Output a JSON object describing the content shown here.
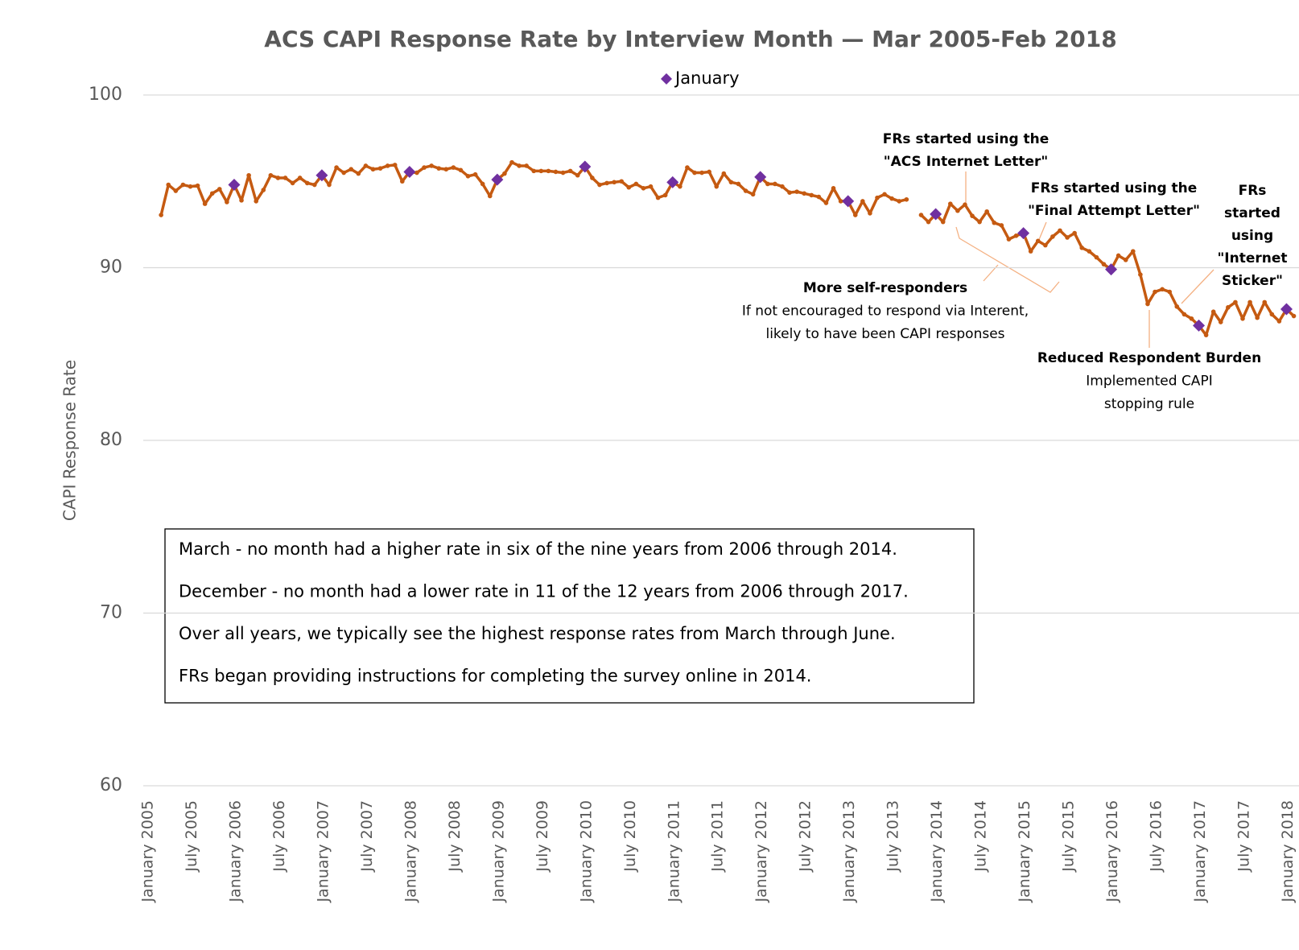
{
  "chart_data": {
    "type": "line",
    "title": "ACS CAPI Response Rate by Interview Month — Mar 2005-Feb 2018",
    "y_label": "CAPI Response Rate",
    "categories": [
      "January 2005",
      null,
      null,
      null,
      null,
      null,
      "July 2005",
      null,
      null,
      null,
      null,
      null,
      "January 2006",
      null,
      null,
      null,
      null,
      null,
      "July 2006",
      null,
      null,
      null,
      null,
      null,
      "January 2007",
      null,
      null,
      null,
      null,
      null,
      "July 2007",
      null,
      null,
      null,
      null,
      null,
      "January 2008",
      null,
      null,
      null,
      null,
      null,
      "July 2008",
      null,
      null,
      null,
      null,
      null,
      "January 2009",
      null,
      null,
      null,
      null,
      null,
      "July 2009",
      null,
      null,
      null,
      null,
      null,
      "January 2010",
      null,
      null,
      null,
      null,
      null,
      "July 2010",
      null,
      null,
      null,
      null,
      null,
      "January 2011",
      null,
      null,
      null,
      null,
      null,
      "July 2011",
      null,
      null,
      null,
      null,
      null,
      "January 2012",
      null,
      null,
      null,
      null,
      null,
      "July 2012",
      null,
      null,
      null,
      null,
      null,
      "January 2013",
      null,
      null,
      null,
      null,
      null,
      "July 2013",
      null,
      null,
      null,
      null,
      null,
      "January 2014",
      null,
      null,
      null,
      null,
      null,
      "July 2014",
      null,
      null,
      null,
      null,
      null,
      "January 2015",
      null,
      null,
      null,
      null,
      null,
      "July 2015",
      null,
      null,
      null,
      null,
      null,
      "January 2016",
      null,
      null,
      null,
      null,
      null,
      "July 2016",
      null,
      null,
      null,
      null,
      null,
      "January 2017",
      null,
      null,
      null,
      null,
      null,
      "July 2017",
      null,
      null,
      null,
      null,
      null,
      "January 2018",
      null
    ],
    "series": [
      {
        "color": "#c55a11",
        "marker": "dot",
        "values": [
          null,
          null,
          93.05,
          94.8,
          94.45,
          94.8,
          94.7,
          94.75,
          93.7,
          94.3,
          94.55,
          93.8,
          94.8,
          93.9,
          95.35,
          93.85,
          94.5,
          95.35,
          95.2,
          95.2,
          94.9,
          95.2,
          94.9,
          94.8,
          95.35,
          94.8,
          95.8,
          95.5,
          95.7,
          95.45,
          95.9,
          95.7,
          95.75,
          95.9,
          95.95,
          95.0,
          95.55,
          95.5,
          95.8,
          95.9,
          95.75,
          95.7,
          95.8,
          95.65,
          95.3,
          95.4,
          94.85,
          94.15,
          95.1,
          95.45,
          96.1,
          95.9,
          95.9,
          95.6,
          95.6,
          95.6,
          95.55,
          95.5,
          95.6,
          95.35,
          95.85,
          95.2,
          94.8,
          94.9,
          94.95,
          95.0,
          94.65,
          94.85,
          94.6,
          94.7,
          94.05,
          94.2,
          94.95,
          94.7,
          95.8,
          95.5,
          95.5,
          95.55,
          94.7,
          95.45,
          94.95,
          94.85,
          94.45,
          94.25,
          95.25,
          94.85,
          94.85,
          94.7,
          94.35,
          94.4,
          94.3,
          94.2,
          94.1,
          93.75,
          94.6,
          93.85,
          93.85,
          93.05,
          93.85,
          93.15,
          94.05,
          94.25,
          94.0,
          93.85,
          93.95,
          null,
          93.05,
          92.65,
          93.1,
          92.65,
          93.7,
          93.3,
          93.65,
          93.0,
          92.65,
          93.25,
          92.6,
          92.45,
          91.65,
          91.85,
          92.0,
          90.95,
          91.55,
          91.3,
          91.8,
          92.15,
          91.75,
          92.0,
          91.15,
          90.95,
          90.6,
          90.2,
          89.9,
          90.7,
          90.45,
          90.95,
          89.6,
          87.9,
          88.6,
          88.75,
          88.6,
          87.75,
          87.3,
          87.05,
          86.65,
          86.1,
          87.45,
          86.85,
          87.7,
          88.0,
          87.05,
          88.0,
          87.1,
          88.0,
          87.3,
          86.9,
          87.6,
          87.2
        ]
      },
      {
        "name": "January",
        "color": "#7030a0",
        "marker": "diamond",
        "values": [
          null,
          null,
          null,
          null,
          null,
          null,
          null,
          null,
          null,
          null,
          null,
          null,
          94.8,
          null,
          null,
          null,
          null,
          null,
          null,
          null,
          null,
          null,
          null,
          null,
          95.35,
          null,
          null,
          null,
          null,
          null,
          null,
          null,
          null,
          null,
          null,
          null,
          95.55,
          null,
          null,
          null,
          null,
          null,
          null,
          null,
          null,
          null,
          null,
          null,
          95.1,
          null,
          null,
          null,
          null,
          null,
          null,
          null,
          null,
          null,
          null,
          null,
          95.85,
          null,
          null,
          null,
          null,
          null,
          null,
          null,
          null,
          null,
          null,
          null,
          94.95,
          null,
          null,
          null,
          null,
          null,
          null,
          null,
          null,
          null,
          null,
          null,
          95.25,
          null,
          null,
          null,
          null,
          null,
          null,
          null,
          null,
          null,
          null,
          null,
          93.85,
          null,
          null,
          null,
          null,
          null,
          null,
          null,
          null,
          null,
          null,
          null,
          93.1,
          null,
          null,
          null,
          null,
          null,
          null,
          null,
          null,
          null,
          null,
          null,
          92.0,
          null,
          null,
          null,
          null,
          null,
          null,
          null,
          null,
          null,
          null,
          null,
          89.9,
          null,
          null,
          null,
          null,
          null,
          null,
          null,
          null,
          null,
          null,
          null,
          86.65,
          null,
          null,
          null,
          null,
          null,
          null,
          null,
          null,
          null,
          null,
          null,
          87.6,
          null
        ]
      }
    ],
    "ylim": [
      60,
      100
    ],
    "yticks": [
      60,
      70,
      80,
      90,
      100
    ],
    "grid": true,
    "legend": "top",
    "annotations": [
      {
        "lines": [
          "FRs started using the",
          "\"ACS Internet Letter\""
        ]
      },
      {
        "lines": [
          "FRs started using the",
          "\"Final Attempt Letter\""
        ]
      },
      {
        "lines": [
          "FRs",
          "started",
          "using",
          "\"Internet",
          "Sticker\""
        ]
      },
      {
        "lines": [
          "More self-responders",
          "If not encouraged to respond via Interent,",
          "likely to have been CAPI responses"
        ]
      },
      {
        "lines": [
          "Reduced Respondent Burden",
          "Implemented CAPI",
          "stopping rule"
        ]
      }
    ],
    "notes": [
      "March - no month had a higher rate in six of the nine years from 2006 through 2014.",
      "December - no month had a lower rate in 11 of the 12 years from 2006 through 2017.",
      "Over all years, we typically see the highest response rates from March through June.",
      "FRs began providing instructions for completing the survey online in 2014."
    ]
  }
}
